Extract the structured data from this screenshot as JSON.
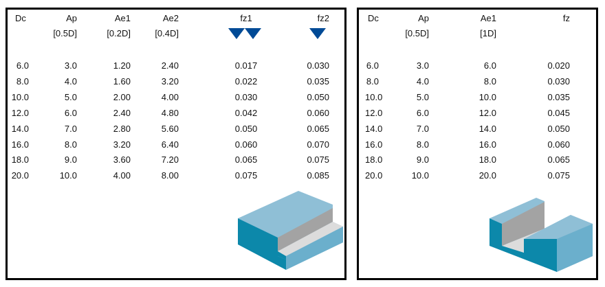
{
  "cutting_tables": [
    {
      "headers": [
        "Dc",
        "Ap",
        "Ae1",
        "Ae2",
        "fz1",
        "fz2"
      ],
      "subheaders": [
        "",
        "[0.5D]",
        "[0.2D]",
        "[0.4D]",
        "",
        ""
      ],
      "rows": [
        [
          "6.0",
          "3.0",
          "1.20",
          "2.40",
          "0.017",
          "0.030"
        ],
        [
          "8.0",
          "4.0",
          "1.60",
          "3.20",
          "0.022",
          "0.035"
        ],
        [
          "10.0",
          "5.0",
          "2.00",
          "4.00",
          "0.030",
          "0.050"
        ],
        [
          "12.0",
          "6.0",
          "2.40",
          "4.80",
          "0.042",
          "0.060"
        ],
        [
          "14.0",
          "7.0",
          "2.80",
          "5.60",
          "0.050",
          "0.065"
        ],
        [
          "16.0",
          "8.0",
          "3.20",
          "6.40",
          "0.060",
          "0.070"
        ],
        [
          "18.0",
          "9.0",
          "3.60",
          "7.20",
          "0.065",
          "0.075"
        ],
        [
          "20.0",
          "10.0",
          "4.00",
          "8.00",
          "0.075",
          "0.085"
        ]
      ],
      "icons": {
        "fz1": "two-triangles-icon",
        "fz2": "triangle-icon",
        "illustration": "shoulder-milling-block"
      }
    },
    {
      "headers": [
        "Dc",
        "Ap",
        "Ae1",
        "fz"
      ],
      "subheaders": [
        "",
        "[0.5D]",
        "[1D]",
        ""
      ],
      "rows": [
        [
          "6.0",
          "3.0",
          "6.0",
          "0.020"
        ],
        [
          "8.0",
          "4.0",
          "8.0",
          "0.030"
        ],
        [
          "10.0",
          "5.0",
          "10.0",
          "0.035"
        ],
        [
          "12.0",
          "6.0",
          "12.0",
          "0.045"
        ],
        [
          "14.0",
          "7.0",
          "14.0",
          "0.050"
        ],
        [
          "16.0",
          "8.0",
          "16.0",
          "0.060"
        ],
        [
          "18.0",
          "9.0",
          "18.0",
          "0.065"
        ],
        [
          "20.0",
          "10.0",
          "20.0",
          "0.075"
        ]
      ],
      "icons": {
        "illustration": "slot-milling-block"
      }
    }
  ],
  "colors": {
    "triangle": "#004a96",
    "block_top": "#8fbfd6",
    "block_side": "#0c88aa",
    "block_right": "#6bafcc",
    "cut_wall": "#a3a3a3",
    "cut_floor": "#dcdcdc"
  }
}
